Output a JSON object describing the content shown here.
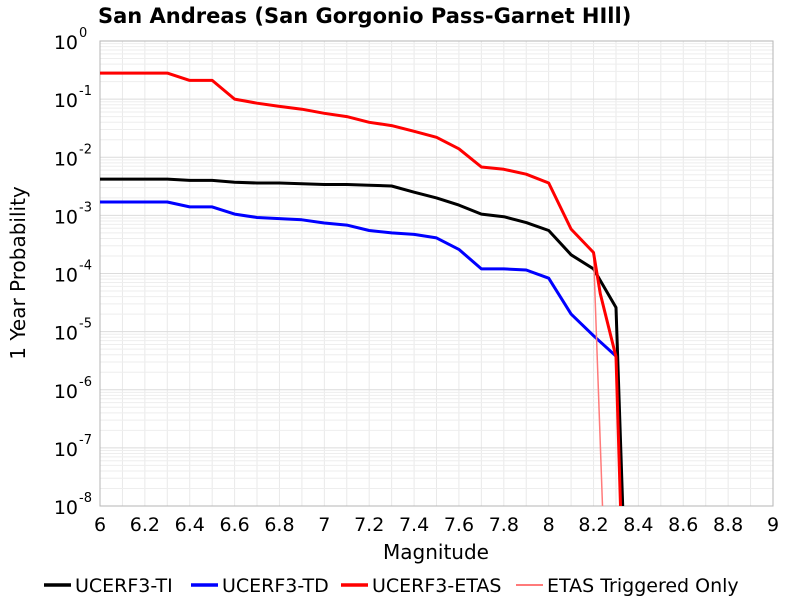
{
  "chart_data": {
    "type": "line",
    "title": "San Andreas (San Gorgonio Pass-Garnet HIll)",
    "xlabel": "Magnitude",
    "ylabel": "1 Year Probability",
    "xlim": [
      6,
      9
    ],
    "ylim": [
      1e-08,
      1
    ],
    "yscale": "log",
    "grid": true,
    "legend_position": "bottom",
    "x_ticks": [
      "6",
      "6.2",
      "6.4",
      "6.6",
      "6.8",
      "7",
      "7.2",
      "7.4",
      "7.6",
      "7.8",
      "8",
      "8.2",
      "8.4",
      "8.6",
      "8.8",
      "9"
    ],
    "y_ticks": [
      {
        "base": "10",
        "exp": "0"
      },
      {
        "base": "10",
        "exp": "-1"
      },
      {
        "base": "10",
        "exp": "-2"
      },
      {
        "base": "10",
        "exp": "-3"
      },
      {
        "base": "10",
        "exp": "-4"
      },
      {
        "base": "10",
        "exp": "-5"
      },
      {
        "base": "10",
        "exp": "-6"
      },
      {
        "base": "10",
        "exp": "-7"
      },
      {
        "base": "10",
        "exp": "-8"
      }
    ],
    "series": [
      {
        "name": "UCERF3-TI",
        "color": "#000000",
        "x": [
          6.0,
          6.1,
          6.2,
          6.3,
          6.4,
          6.5,
          6.6,
          6.7,
          6.8,
          6.9,
          7.0,
          7.1,
          7.2,
          7.3,
          7.4,
          7.5,
          7.6,
          7.7,
          7.8,
          7.9,
          8.0,
          8.1,
          8.2,
          8.3,
          8.33
        ],
        "y": [
          0.0042,
          0.0042,
          0.0042,
          0.0042,
          0.004,
          0.004,
          0.0037,
          0.0036,
          0.0036,
          0.0035,
          0.0034,
          0.0034,
          0.0033,
          0.0032,
          0.0025,
          0.002,
          0.0015,
          0.00105,
          0.00095,
          0.00075,
          0.00055,
          0.00021,
          0.00012,
          2.6e-05,
          1e-08
        ]
      },
      {
        "name": "UCERF3-TD",
        "color": "#0000ff",
        "x": [
          6.0,
          6.1,
          6.2,
          6.3,
          6.4,
          6.5,
          6.6,
          6.7,
          6.8,
          6.9,
          7.0,
          7.1,
          7.2,
          7.3,
          7.4,
          7.5,
          7.6,
          7.7,
          7.8,
          7.9,
          8.0,
          8.1,
          8.2,
          8.3
        ],
        "y": [
          0.0017,
          0.0017,
          0.0017,
          0.0017,
          0.0014,
          0.0014,
          0.00105,
          0.00092,
          0.00088,
          0.00084,
          0.00074,
          0.00068,
          0.00055,
          0.0005,
          0.00047,
          0.00041,
          0.00026,
          0.00012,
          0.00012,
          0.000115,
          8.3e-05,
          2e-05,
          8.5e-06,
          3.8e-06
        ]
      },
      {
        "name": "UCERF3-ETAS",
        "color": "#ff0000",
        "x": [
          6.0,
          6.1,
          6.2,
          6.3,
          6.4,
          6.5,
          6.6,
          6.7,
          6.8,
          6.9,
          7.0,
          7.1,
          7.2,
          7.3,
          7.4,
          7.5,
          7.6,
          7.7,
          7.8,
          7.9,
          8.0,
          8.1,
          8.2,
          8.23,
          8.3,
          8.32
        ],
        "y": [
          0.28,
          0.28,
          0.28,
          0.28,
          0.21,
          0.21,
          0.1,
          0.085,
          0.075,
          0.067,
          0.057,
          0.05,
          0.04,
          0.035,
          0.028,
          0.022,
          0.014,
          0.0068,
          0.0062,
          0.0051,
          0.0036,
          0.00058,
          0.00023,
          4.5e-05,
          3.7e-06,
          1e-08
        ]
      },
      {
        "name": "ETAS Triggered Only",
        "color": "#ff7a7a",
        "x": [
          8.2,
          8.24
        ],
        "y": [
          0.00023,
          1e-08
        ]
      }
    ]
  }
}
